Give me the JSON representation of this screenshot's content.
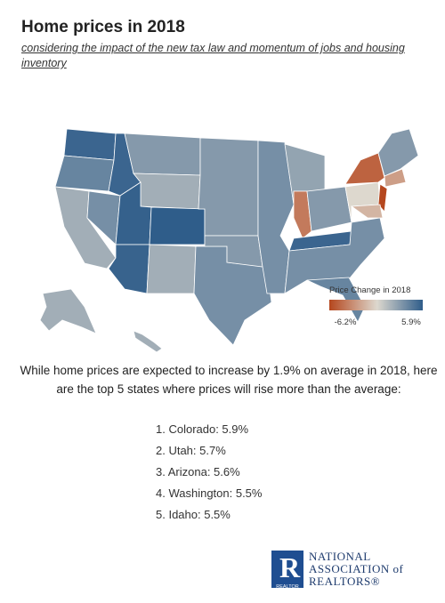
{
  "header": {
    "title": "Home prices in 2018",
    "subtitle": "considering the impact of the new tax law and momentum of jobs and housing inventory"
  },
  "map": {
    "regions": [
      5.5,
      4,
      2,
      3.5,
      5.5,
      3,
      2,
      5.7,
      5.6,
      5.9,
      2,
      3,
      3.5,
      3,
      3.5,
      2.5,
      -4,
      3,
      5.5,
      3.5,
      4,
      0,
      -5,
      -6.2,
      3,
      -2.5,
      -1.5,
      2,
      2
    ],
    "legend": {
      "title": "Price Change in 2018",
      "min": {
        "value": -6.2,
        "label": "-6.2%"
      },
      "max": {
        "value": 5.9,
        "label": "5.9%"
      }
    }
  },
  "body": "While  home prices are expected to increase by 1.9% on average in 2018, here are the  top 5 states where prices will rise more than the average:",
  "list": [
    "1. Colorado: 5.9%",
    "2. Utah: 5.7%",
    "3. Arizona: 5.6%",
    "4. Washington: 5.5%",
    "5. Idaho: 5.5%"
  ],
  "logo": {
    "lines": [
      "NATIONAL",
      "ASSOCIATION of",
      "REALTORS®"
    ],
    "badge": "REALTOR"
  }
}
